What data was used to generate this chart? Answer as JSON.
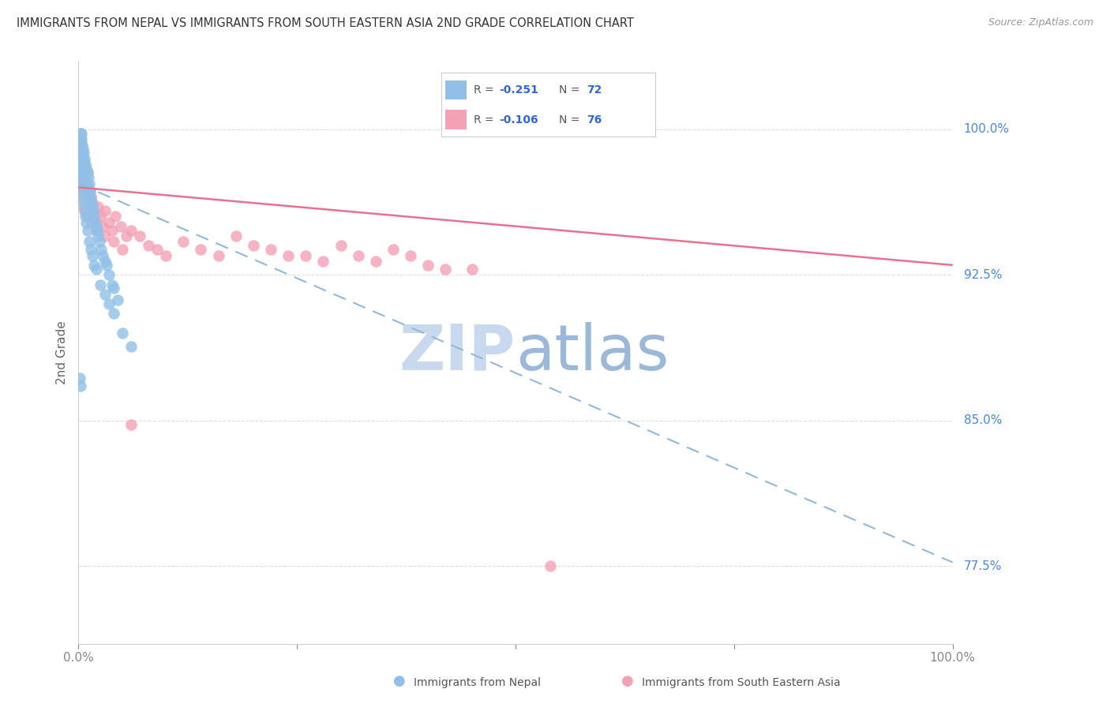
{
  "title": "IMMIGRANTS FROM NEPAL VS IMMIGRANTS FROM SOUTH EASTERN ASIA 2ND GRADE CORRELATION CHART",
  "source": "Source: ZipAtlas.com",
  "ylabel": "2nd Grade",
  "ytick_labels": [
    "77.5%",
    "85.0%",
    "92.5%",
    "100.0%"
  ],
  "ytick_values": [
    0.775,
    0.85,
    0.925,
    1.0
  ],
  "xmin": 0.0,
  "xmax": 1.0,
  "ymin": 0.735,
  "ymax": 1.035,
  "color_nepal": "#90C0E8",
  "color_sea": "#F4A0B5",
  "color_nepal_line": "#90B8D8",
  "color_sea_line": "#E87090",
  "color_yticks": "#4488DD",
  "color_xticks": "#333333",
  "color_title": "#333333",
  "color_source": "#999999",
  "color_watermark_zip": "#C8D8EE",
  "color_watermark_atlas": "#9BB8D8",
  "background": "#FFFFFF",
  "nepal_intercept": 0.972,
  "nepal_slope": -0.195,
  "sea_intercept": 0.97,
  "sea_slope": -0.04,
  "nepal_x": [
    0.001,
    0.001,
    0.001,
    0.002,
    0.002,
    0.002,
    0.002,
    0.003,
    0.003,
    0.003,
    0.003,
    0.004,
    0.004,
    0.004,
    0.005,
    0.005,
    0.005,
    0.006,
    0.006,
    0.006,
    0.007,
    0.007,
    0.008,
    0.008,
    0.009,
    0.009,
    0.01,
    0.01,
    0.011,
    0.011,
    0.012,
    0.013,
    0.014,
    0.015,
    0.016,
    0.017,
    0.018,
    0.019,
    0.02,
    0.021,
    0.022,
    0.024,
    0.026,
    0.028,
    0.03,
    0.032,
    0.035,
    0.038,
    0.04,
    0.045,
    0.002,
    0.003,
    0.004,
    0.005,
    0.006,
    0.007,
    0.008,
    0.009,
    0.01,
    0.012,
    0.014,
    0.016,
    0.018,
    0.02,
    0.025,
    0.03,
    0.035,
    0.04,
    0.05,
    0.06,
    0.001,
    0.002
  ],
  "nepal_y": [
    0.99,
    0.985,
    0.98,
    0.998,
    0.995,
    0.99,
    0.985,
    0.998,
    0.995,
    0.99,
    0.985,
    0.992,
    0.988,
    0.982,
    0.99,
    0.985,
    0.978,
    0.988,
    0.982,
    0.975,
    0.985,
    0.978,
    0.982,
    0.975,
    0.98,
    0.972,
    0.978,
    0.97,
    0.975,
    0.968,
    0.972,
    0.968,
    0.965,
    0.962,
    0.96,
    0.958,
    0.955,
    0.952,
    0.95,
    0.948,
    0.945,
    0.942,
    0.938,
    0.935,
    0.932,
    0.93,
    0.925,
    0.92,
    0.918,
    0.912,
    0.975,
    0.972,
    0.968,
    0.965,
    0.962,
    0.958,
    0.955,
    0.952,
    0.948,
    0.942,
    0.938,
    0.935,
    0.93,
    0.928,
    0.92,
    0.915,
    0.91,
    0.905,
    0.895,
    0.888,
    0.872,
    0.868
  ],
  "sea_x": [
    0.001,
    0.001,
    0.002,
    0.002,
    0.002,
    0.003,
    0.003,
    0.003,
    0.004,
    0.004,
    0.005,
    0.005,
    0.006,
    0.006,
    0.007,
    0.007,
    0.008,
    0.008,
    0.009,
    0.01,
    0.01,
    0.011,
    0.012,
    0.013,
    0.014,
    0.015,
    0.016,
    0.017,
    0.018,
    0.02,
    0.022,
    0.025,
    0.028,
    0.03,
    0.035,
    0.038,
    0.042,
    0.048,
    0.055,
    0.06,
    0.07,
    0.08,
    0.09,
    0.1,
    0.12,
    0.14,
    0.16,
    0.18,
    0.2,
    0.22,
    0.24,
    0.26,
    0.28,
    0.3,
    0.32,
    0.34,
    0.36,
    0.38,
    0.4,
    0.42,
    0.001,
    0.002,
    0.003,
    0.004,
    0.005,
    0.006,
    0.008,
    0.01,
    0.015,
    0.02,
    0.03,
    0.04,
    0.05,
    0.06,
    0.45,
    0.54
  ],
  "sea_y": [
    0.992,
    0.985,
    0.995,
    0.988,
    0.98,
    0.99,
    0.982,
    0.975,
    0.988,
    0.98,
    0.985,
    0.978,
    0.982,
    0.975,
    0.978,
    0.97,
    0.975,
    0.968,
    0.972,
    0.978,
    0.97,
    0.965,
    0.962,
    0.968,
    0.965,
    0.96,
    0.962,
    0.958,
    0.955,
    0.952,
    0.96,
    0.955,
    0.95,
    0.958,
    0.952,
    0.948,
    0.955,
    0.95,
    0.945,
    0.948,
    0.945,
    0.94,
    0.938,
    0.935,
    0.942,
    0.938,
    0.935,
    0.945,
    0.94,
    0.938,
    0.935,
    0.935,
    0.932,
    0.94,
    0.935,
    0.932,
    0.938,
    0.935,
    0.93,
    0.928,
    0.98,
    0.975,
    0.97,
    0.968,
    0.965,
    0.96,
    0.958,
    0.955,
    0.952,
    0.948,
    0.945,
    0.942,
    0.938,
    0.848,
    0.928,
    0.775
  ]
}
